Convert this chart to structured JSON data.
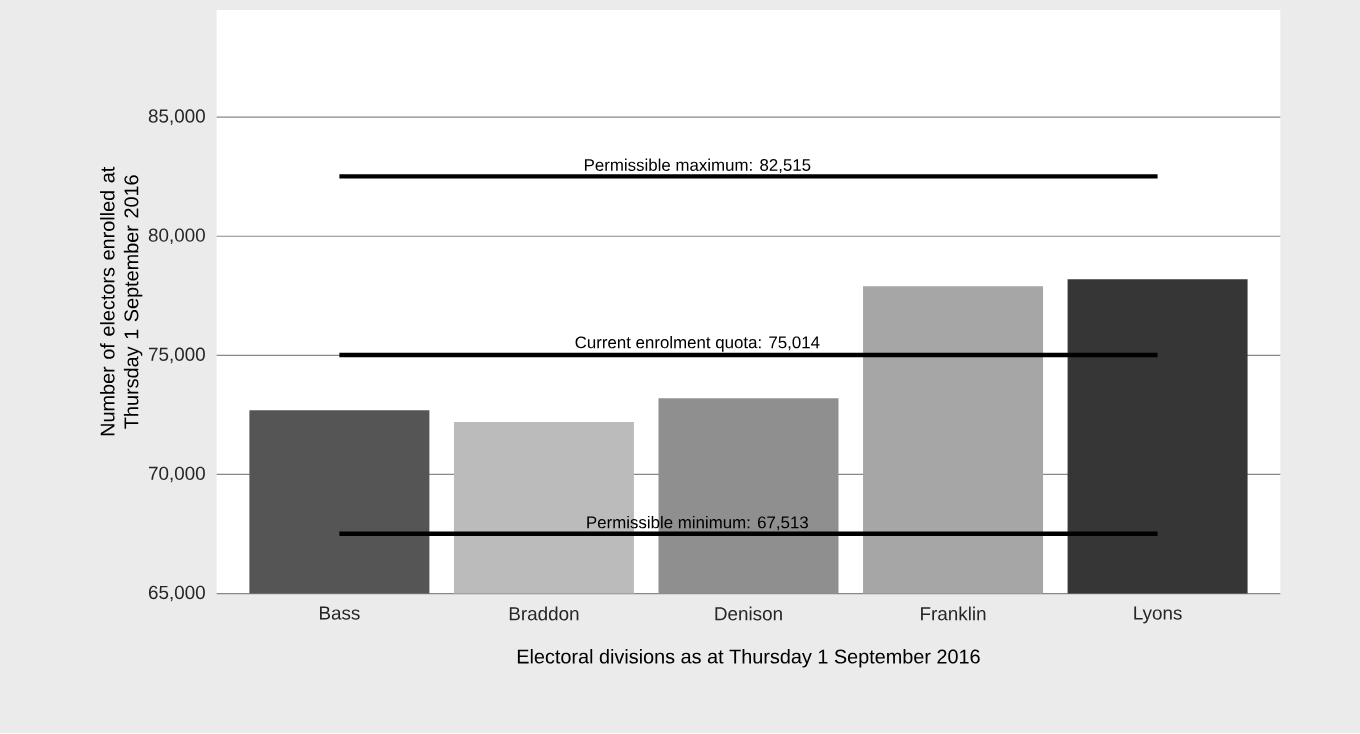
{
  "chart_data": {
    "type": "bar",
    "xlabel": "Electoral divisions as at Thursday 1 September 2016",
    "ylabel": "Number of electors enrolled at Thursday 1 September 2016",
    "categories": [
      "Bass",
      "Braddon",
      "Denison",
      "Franklin",
      "Lyons"
    ],
    "values": [
      72700,
      72200,
      73200,
      77900,
      78200
    ],
    "colors": [
      "#555555",
      "#bbbbbb",
      "#8f8f8f",
      "#a6a6a6",
      "#363636"
    ],
    "ylim": [
      65000,
      89500
    ],
    "yticks": [
      {
        "value": 65000,
        "label": "65,000"
      },
      {
        "value": 70000,
        "label": "70,000"
      },
      {
        "value": 75000,
        "label": "75,000"
      },
      {
        "value": 80000,
        "label": "80,000"
      },
      {
        "value": 85000,
        "label": "85,000"
      }
    ],
    "grid": "y",
    "ref_lines": [
      {
        "axis": "y",
        "value": 82515,
        "label": "Permissible maximum: 82,515",
        "color": "#000000"
      },
      {
        "axis": "y",
        "value": 75014,
        "label": "Current enrolment quota: 75,014",
        "color": "#000000"
      },
      {
        "axis": "y",
        "value": 67513,
        "label": "Permissible minimum: 67,513",
        "color": "#000000"
      }
    ]
  }
}
